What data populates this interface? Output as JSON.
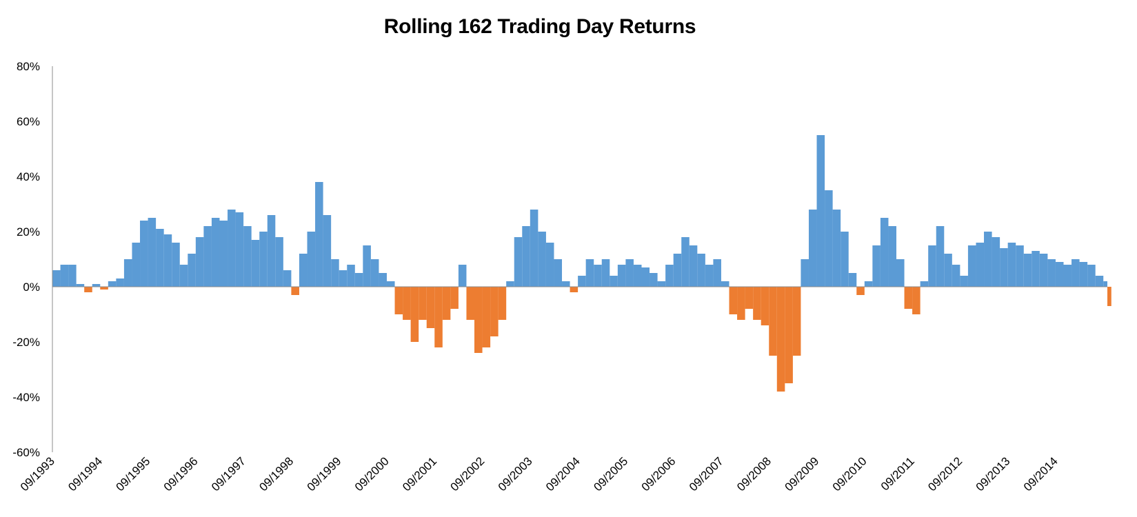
{
  "chart_data": {
    "type": "bar",
    "title": "Rolling 162 Trading Day Returns",
    "xlabel": "",
    "ylabel": "",
    "ylim": [
      -60,
      80
    ],
    "y_ticks": [
      "80%",
      "60%",
      "40%",
      "20%",
      "0%",
      "-20%",
      "-40%",
      "-60%"
    ],
    "x_ticks": [
      "09/1993",
      "09/1994",
      "09/1995",
      "09/1996",
      "09/1997",
      "09/1998",
      "09/1999",
      "09/2000",
      "09/2001",
      "09/2002",
      "09/2003",
      "09/2004",
      "09/2005",
      "09/2006",
      "09/2007",
      "09/2008",
      "09/2009",
      "09/2010",
      "09/2011",
      "09/2012",
      "09/2013",
      "09/2014"
    ],
    "x_range": [
      "09/1993",
      "10/2015"
    ],
    "colors": {
      "positive": "#5B9BD5",
      "negative": "#ED7D31"
    },
    "grid": false,
    "legend": "none",
    "series": [
      {
        "points": [
          [
            "09/1993",
            6
          ],
          [
            "11/1993",
            8
          ],
          [
            "01/1994",
            8
          ],
          [
            "03/1994",
            1
          ],
          [
            "05/1994",
            -2
          ],
          [
            "07/1994",
            1
          ],
          [
            "09/1994",
            -1
          ],
          [
            "11/1994",
            2
          ],
          [
            "01/1995",
            3
          ],
          [
            "03/1995",
            10
          ],
          [
            "05/1995",
            16
          ],
          [
            "07/1995",
            24
          ],
          [
            "09/1995",
            25
          ],
          [
            "11/1995",
            21
          ],
          [
            "01/1996",
            19
          ],
          [
            "03/1996",
            16
          ],
          [
            "05/1996",
            8
          ],
          [
            "07/1996",
            12
          ],
          [
            "09/1996",
            18
          ],
          [
            "11/1996",
            22
          ],
          [
            "01/1997",
            25
          ],
          [
            "03/1997",
            24
          ],
          [
            "05/1997",
            28
          ],
          [
            "07/1997",
            27
          ],
          [
            "09/1997",
            22
          ],
          [
            "11/1997",
            17
          ],
          [
            "01/1998",
            20
          ],
          [
            "03/1998",
            26
          ],
          [
            "05/1998",
            18
          ],
          [
            "07/1998",
            6
          ],
          [
            "09/1998",
            -3
          ],
          [
            "11/1998",
            12
          ],
          [
            "01/1999",
            20
          ],
          [
            "03/1999",
            38
          ],
          [
            "05/1999",
            26
          ],
          [
            "07/1999",
            10
          ],
          [
            "09/1999",
            6
          ],
          [
            "11/1999",
            8
          ],
          [
            "01/2000",
            5
          ],
          [
            "03/2000",
            15
          ],
          [
            "05/2000",
            10
          ],
          [
            "07/2000",
            5
          ],
          [
            "09/2000",
            2
          ],
          [
            "11/2000",
            -10
          ],
          [
            "01/2001",
            -12
          ],
          [
            "03/2001",
            -20
          ],
          [
            "05/2001",
            -12
          ],
          [
            "07/2001",
            -15
          ],
          [
            "09/2001",
            -22
          ],
          [
            "11/2001",
            -12
          ],
          [
            "01/2002",
            -8
          ],
          [
            "03/2002",
            8
          ],
          [
            "05/2002",
            -12
          ],
          [
            "07/2002",
            -24
          ],
          [
            "09/2002",
            -22
          ],
          [
            "11/2002",
            -18
          ],
          [
            "01/2003",
            -12
          ],
          [
            "03/2003",
            2
          ],
          [
            "05/2003",
            18
          ],
          [
            "07/2003",
            22
          ],
          [
            "09/2003",
            28
          ],
          [
            "11/2003",
            20
          ],
          [
            "01/2004",
            16
          ],
          [
            "03/2004",
            10
          ],
          [
            "05/2004",
            2
          ],
          [
            "07/2004",
            -2
          ],
          [
            "09/2004",
            4
          ],
          [
            "11/2004",
            10
          ],
          [
            "01/2005",
            8
          ],
          [
            "03/2005",
            10
          ],
          [
            "05/2005",
            4
          ],
          [
            "07/2005",
            8
          ],
          [
            "09/2005",
            10
          ],
          [
            "11/2005",
            8
          ],
          [
            "01/2006",
            7
          ],
          [
            "03/2006",
            5
          ],
          [
            "05/2006",
            2
          ],
          [
            "07/2006",
            8
          ],
          [
            "09/2006",
            12
          ],
          [
            "11/2006",
            18
          ],
          [
            "01/2007",
            15
          ],
          [
            "03/2007",
            12
          ],
          [
            "05/2007",
            8
          ],
          [
            "07/2007",
            10
          ],
          [
            "09/2007",
            2
          ],
          [
            "11/2007",
            -10
          ],
          [
            "01/2008",
            -12
          ],
          [
            "03/2008",
            -8
          ],
          [
            "05/2008",
            -12
          ],
          [
            "07/2008",
            -14
          ],
          [
            "09/2008",
            -25
          ],
          [
            "11/2008",
            -38
          ],
          [
            "01/2009",
            -35
          ],
          [
            "03/2009",
            -25
          ],
          [
            "05/2009",
            10
          ],
          [
            "07/2009",
            28
          ],
          [
            "09/2009",
            55
          ],
          [
            "11/2009",
            35
          ],
          [
            "01/2010",
            28
          ],
          [
            "03/2010",
            20
          ],
          [
            "05/2010",
            5
          ],
          [
            "07/2010",
            -3
          ],
          [
            "09/2010",
            2
          ],
          [
            "11/2010",
            15
          ],
          [
            "01/2011",
            25
          ],
          [
            "03/2011",
            22
          ],
          [
            "05/2011",
            10
          ],
          [
            "07/2011",
            -8
          ],
          [
            "09/2011",
            -10
          ],
          [
            "11/2011",
            2
          ],
          [
            "01/2012",
            15
          ],
          [
            "03/2012",
            22
          ],
          [
            "05/2012",
            12
          ],
          [
            "07/2012",
            8
          ],
          [
            "09/2012",
            4
          ],
          [
            "11/2012",
            15
          ],
          [
            "01/2013",
            16
          ],
          [
            "03/2013",
            20
          ],
          [
            "05/2013",
            18
          ],
          [
            "07/2013",
            14
          ],
          [
            "09/2013",
            16
          ],
          [
            "11/2013",
            15
          ],
          [
            "01/2014",
            12
          ],
          [
            "03/2014",
            13
          ],
          [
            "05/2014",
            12
          ],
          [
            "07/2014",
            10
          ],
          [
            "09/2014",
            9
          ],
          [
            "11/2014",
            8
          ],
          [
            "01/2015",
            10
          ],
          [
            "03/2015",
            9
          ],
          [
            "05/2015",
            8
          ],
          [
            "07/2015",
            4
          ],
          [
            "09/2015",
            2
          ],
          [
            "10/2015",
            -7
          ]
        ]
      }
    ]
  }
}
